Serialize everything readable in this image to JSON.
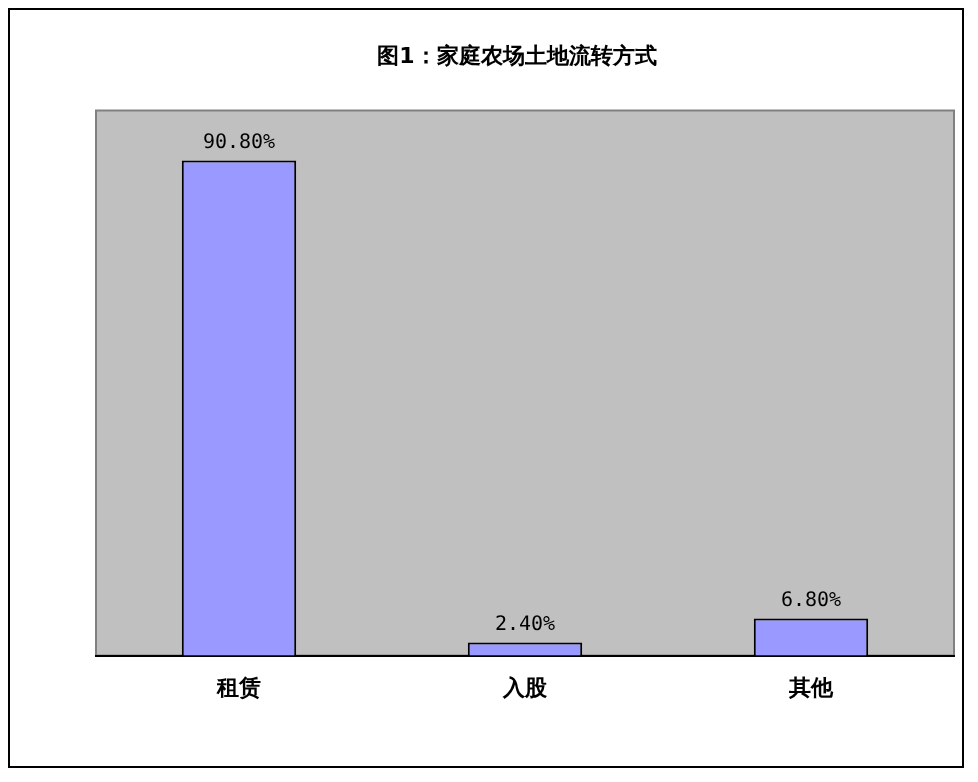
{
  "chart_data": {
    "type": "bar",
    "title": "图1：家庭农场土地流转方式",
    "categories": [
      "租赁",
      "入股",
      "其他"
    ],
    "values": [
      90.8,
      2.4,
      6.8
    ],
    "value_labels": [
      "90.80%",
      "2.40%",
      "6.80%"
    ],
    "color": "#9999ff",
    "ylim": [
      0,
      100
    ],
    "grid": false,
    "legend": false
  }
}
